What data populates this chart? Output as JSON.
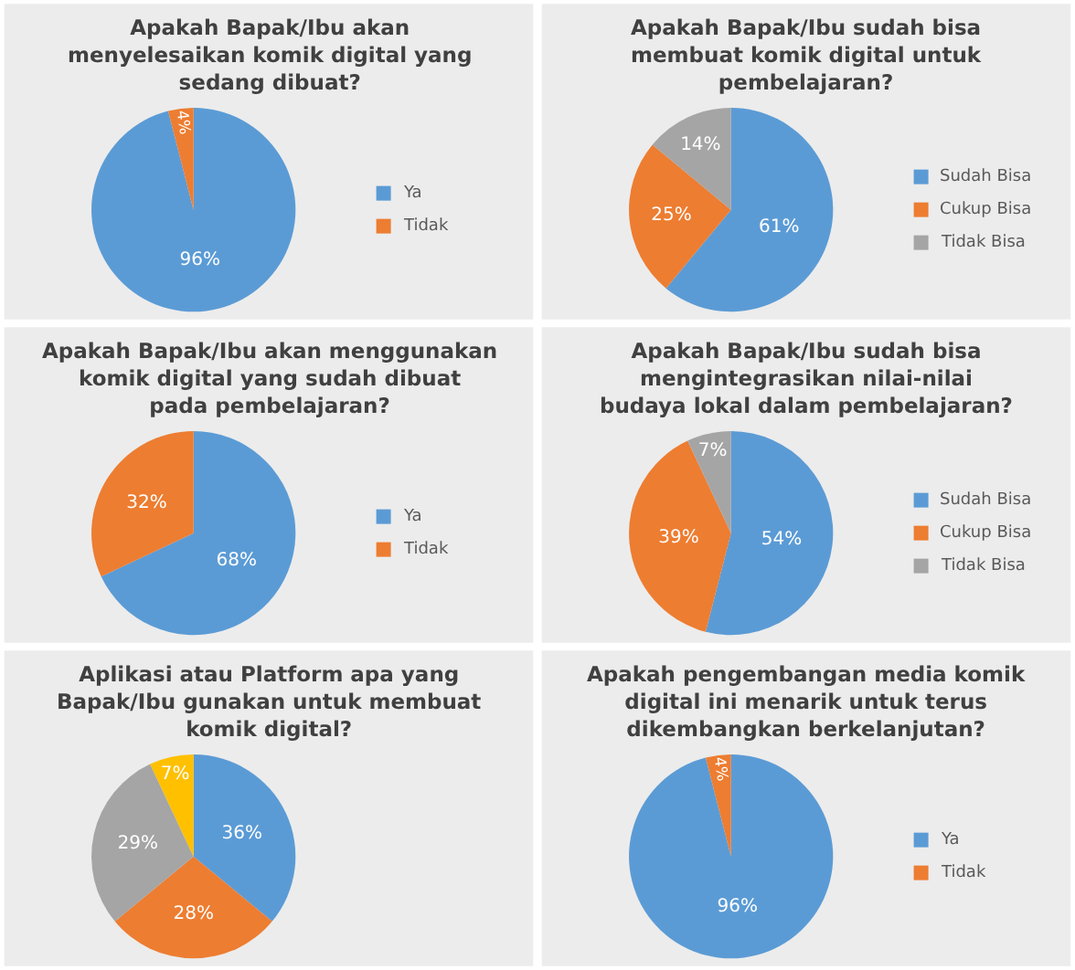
{
  "chart_data": [
    {
      "type": "pie",
      "title": "Apakah Bapak/Ibu akan menyelesaikan komik digital yang sedang dibuat?",
      "categories": [
        "Ya",
        "Tidak"
      ],
      "values": [
        96,
        4
      ],
      "colors": [
        "#5b9bd5",
        "#ed7d31"
      ],
      "value_labels": [
        "96%",
        "4%"
      ],
      "legend": "right"
    },
    {
      "type": "pie",
      "title": "Apakah Bapak/Ibu sudah bisa membuat komik digital untuk pembelajaran?",
      "categories": [
        "Sudah Bisa",
        "Cukup Bisa",
        "Tidak Bisa"
      ],
      "values": [
        61,
        25,
        14
      ],
      "colors": [
        "#5b9bd5",
        "#ed7d31",
        "#a5a5a5"
      ],
      "value_labels": [
        "61%",
        "25%",
        "14%"
      ],
      "legend": "right"
    },
    {
      "type": "pie",
      "title": "Apakah Bapak/Ibu akan menggunakan komik digital yang sudah dibuat pada pembelajaran?",
      "categories": [
        "Ya",
        "Tidak"
      ],
      "values": [
        68,
        32
      ],
      "colors": [
        "#5b9bd5",
        "#ed7d31"
      ],
      "value_labels": [
        "68%",
        "32%"
      ],
      "legend": "right"
    },
    {
      "type": "pie",
      "title": "Apakah Bapak/Ibu sudah bisa mengintegrasikan nilai-nilai budaya lokal dalam pembelajaran?",
      "categories": [
        "Sudah Bisa",
        "Cukup Bisa",
        "Tidak Bisa"
      ],
      "values": [
        54,
        39,
        7
      ],
      "colors": [
        "#5b9bd5",
        "#ed7d31",
        "#a5a5a5"
      ],
      "value_labels": [
        "54%",
        "39%",
        "7%"
      ],
      "legend": "right"
    },
    {
      "type": "pie",
      "title": "Aplikasi atau Platform apa yang Bapak/Ibu gunakan untuk membuat komik digital?",
      "categories": [
        null,
        null,
        null,
        null
      ],
      "values": [
        36,
        28,
        29,
        7
      ],
      "colors": [
        "#5b9bd5",
        "#ed7d31",
        "#a5a5a5",
        "#ffc000"
      ],
      "value_labels": [
        "36%",
        "28%",
        "29%",
        "7%"
      ]
    },
    {
      "type": "pie",
      "title": "Apakah pengembangan media komik digital ini menarik untuk terus dikembangkan berkelanjutan?",
      "categories": [
        "Ya",
        "Tidak"
      ],
      "values": [
        96,
        4
      ],
      "colors": [
        "#5b9bd5",
        "#ed7d31"
      ],
      "value_labels": [
        "96%",
        "4%"
      ],
      "legend": "right"
    }
  ]
}
